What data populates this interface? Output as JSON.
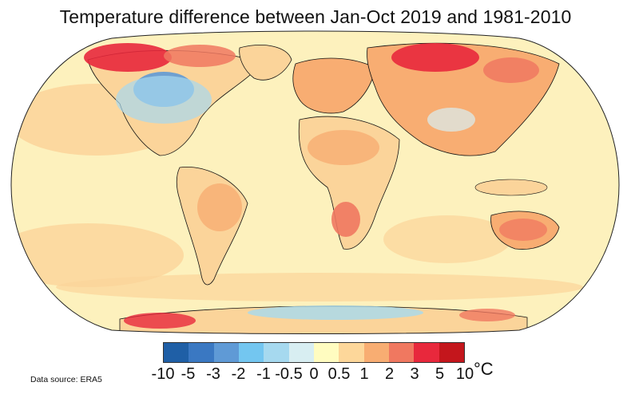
{
  "title": "Temperature difference between Jan-Oct 2019 and 1981-2010",
  "source": "Data source: ERA5",
  "legend": {
    "unit": "°C",
    "colors": [
      "#1f5fa6",
      "#3a78c2",
      "#5f9ad6",
      "#73c6f0",
      "#a6d9ef",
      "#d8eef2",
      "#fffcc0",
      "#fdd79a",
      "#f8ad72",
      "#f07860",
      "#e8283c",
      "#c4161c"
    ],
    "ticks": [
      "-10",
      "-5",
      "-3",
      "-2",
      "-1",
      "-0.5",
      "0",
      "0.5",
      "1",
      "2",
      "3",
      "5",
      "10"
    ]
  },
  "palette": {
    "ocean": "#fdf1bd",
    "land_warm": "#fbd49a",
    "warm": "#f8ad72",
    "hot": "#f07860",
    "very_hot": "#e8283c",
    "cool": "#a6d9ef",
    "cold": "#5f9ad6"
  }
}
